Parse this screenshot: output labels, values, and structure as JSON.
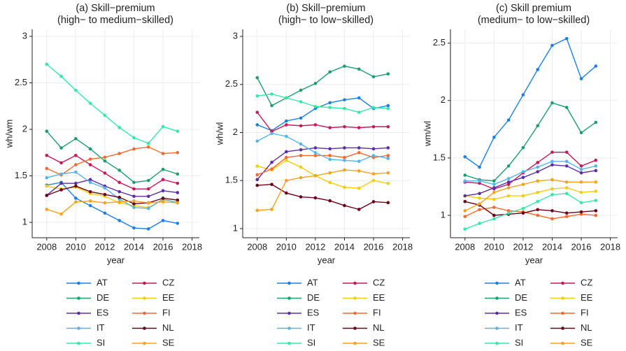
{
  "chart_data": [
    {
      "type": "line",
      "title": [
        "(a) Skill−premium",
        "(high− to medium−skilled)"
      ],
      "xlabel": "year",
      "ylabel": "wh/wm",
      "x": [
        2008,
        2009,
        2010,
        2011,
        2012,
        2013,
        2014,
        2015,
        2016,
        2017
      ],
      "xlim": [
        2007,
        2018.5
      ],
      "xticks": [
        2008,
        2010,
        2012,
        2014,
        2016,
        2018
      ],
      "ylim": [
        0.835,
        3.075
      ],
      "yticks": [
        1,
        1.5,
        2,
        2.5,
        3
      ],
      "grid": true,
      "series": [
        {
          "name": "AT",
          "color": "#1a7fe6",
          "values": [
            1.4,
            1.43,
            1.26,
            1.18,
            1.1,
            1.02,
            0.94,
            0.93,
            1.02,
            0.99
          ]
        },
        {
          "name": "CZ",
          "color": "#c8175a",
          "values": [
            1.72,
            1.64,
            1.72,
            1.62,
            1.53,
            1.43,
            1.36,
            1.36,
            1.46,
            1.42
          ]
        },
        {
          "name": "DE",
          "color": "#1a9e6e",
          "values": [
            1.98,
            1.8,
            1.9,
            1.79,
            1.66,
            1.56,
            1.43,
            1.45,
            1.57,
            1.52
          ]
        },
        {
          "name": "EE",
          "color": "#f2cd0f",
          "values": [
            1.39,
            1.36,
            1.38,
            1.31,
            1.28,
            1.21,
            1.18,
            1.16,
            1.24,
            1.22
          ]
        },
        {
          "name": "ES",
          "color": "#5b2ea6",
          "values": [
            1.29,
            1.42,
            1.42,
            1.46,
            1.39,
            1.33,
            1.28,
            1.28,
            1.34,
            1.32
          ]
        },
        {
          "name": "FI",
          "color": "#f26b2e",
          "values": [
            1.58,
            1.51,
            1.62,
            1.68,
            1.7,
            1.74,
            1.79,
            1.81,
            1.74,
            1.75
          ]
        },
        {
          "name": "IT",
          "color": "#56b4e9",
          "values": [
            1.48,
            1.52,
            1.54,
            1.43,
            1.37,
            1.25,
            1.16,
            1.15,
            1.25,
            1.21
          ]
        },
        {
          "name": "NL",
          "color": "#6b0018",
          "values": [
            1.29,
            1.35,
            1.39,
            1.33,
            1.3,
            1.27,
            1.2,
            1.21,
            1.26,
            1.24
          ]
        },
        {
          "name": "SI",
          "color": "#33e8a8",
          "values": [
            2.7,
            2.57,
            2.42,
            2.28,
            2.15,
            2.02,
            1.91,
            1.85,
            2.03,
            1.98
          ]
        },
        {
          "name": "SE",
          "color": "#f5a21c",
          "values": [
            1.14,
            1.09,
            1.22,
            1.23,
            1.21,
            1.22,
            1.23,
            1.21,
            1.22,
            1.21
          ]
        }
      ]
    },
    {
      "type": "line",
      "title": [
        "(b) Skill−premium",
        "(high− to low−skilled)"
      ],
      "xlabel": "year",
      "ylabel": "wh/wl",
      "x": [
        2008,
        2009,
        2010,
        2011,
        2012,
        2013,
        2014,
        2015,
        2016,
        2017
      ],
      "xlim": [
        2007,
        2018.5
      ],
      "xticks": [
        2008,
        2010,
        2012,
        2014,
        2016,
        2018
      ],
      "ylim": [
        0.905,
        3.073
      ],
      "yticks": [
        1,
        1.5,
        2,
        2.5,
        3
      ],
      "grid": true,
      "series": [
        {
          "name": "AT",
          "color": "#1a7fe6",
          "values": [
            2.08,
            2.02,
            2.12,
            2.15,
            2.25,
            2.31,
            2.34,
            2.36,
            2.25,
            2.28
          ]
        },
        {
          "name": "CZ",
          "color": "#c8175a",
          "values": [
            2.21,
            2.01,
            2.08,
            2.07,
            2.08,
            2.05,
            2.06,
            2.05,
            2.06,
            2.06
          ]
        },
        {
          "name": "DE",
          "color": "#1a9e6e",
          "values": [
            2.57,
            2.28,
            2.36,
            2.44,
            2.51,
            2.63,
            2.69,
            2.66,
            2.58,
            2.61
          ]
        },
        {
          "name": "EE",
          "color": "#f2cd0f",
          "values": [
            1.65,
            1.61,
            1.71,
            1.64,
            1.55,
            1.48,
            1.43,
            1.42,
            1.5,
            1.47
          ]
        },
        {
          "name": "ES",
          "color": "#5b2ea6",
          "values": [
            1.51,
            1.69,
            1.8,
            1.82,
            1.84,
            1.83,
            1.84,
            1.84,
            1.83,
            1.84
          ]
        },
        {
          "name": "FI",
          "color": "#f26b2e",
          "values": [
            1.56,
            1.62,
            1.74,
            1.76,
            1.76,
            1.76,
            1.74,
            1.79,
            1.74,
            1.76
          ]
        },
        {
          "name": "IT",
          "color": "#56b4e9",
          "values": [
            1.91,
            1.99,
            1.96,
            1.88,
            1.79,
            1.72,
            1.71,
            1.7,
            1.76,
            1.73
          ]
        },
        {
          "name": "NL",
          "color": "#6b0018",
          "values": [
            1.45,
            1.46,
            1.37,
            1.33,
            1.32,
            1.29,
            1.24,
            1.2,
            1.28,
            1.27
          ]
        },
        {
          "name": "SI",
          "color": "#33e8a8",
          "values": [
            2.38,
            2.4,
            2.36,
            2.32,
            2.27,
            2.26,
            2.25,
            2.21,
            2.26,
            2.25
          ]
        },
        {
          "name": "SE",
          "color": "#f5a21c",
          "values": [
            1.19,
            1.2,
            1.5,
            1.53,
            1.55,
            1.58,
            1.61,
            1.6,
            1.57,
            1.58
          ]
        }
      ]
    },
    {
      "type": "line",
      "title": [
        "(c) Skill premium",
        "(medium− to low−skilled)"
      ],
      "xlabel": "year",
      "ylabel": "wm/wl",
      "x": [
        2008,
        2009,
        2010,
        2011,
        2012,
        2013,
        2014,
        2015,
        2016,
        2017
      ],
      "xlim": [
        2007,
        2018.5
      ],
      "xticks": [
        2008,
        2010,
        2012,
        2014,
        2016,
        2018
      ],
      "ylim": [
        0.805,
        2.62
      ],
      "yticks": [
        1,
        1.5,
        2,
        2.5
      ],
      "grid": true,
      "series": [
        {
          "name": "AT",
          "color": "#1a7fe6",
          "values": [
            1.51,
            1.42,
            1.68,
            1.83,
            2.05,
            2.27,
            2.48,
            2.54,
            2.19,
            2.3
          ]
        },
        {
          "name": "CZ",
          "color": "#c8175a",
          "values": [
            1.29,
            1.28,
            1.23,
            1.27,
            1.37,
            1.46,
            1.55,
            1.55,
            1.43,
            1.48
          ]
        },
        {
          "name": "DE",
          "color": "#1a9e6e",
          "values": [
            1.35,
            1.31,
            1.3,
            1.43,
            1.59,
            1.78,
            1.98,
            1.94,
            1.72,
            1.81
          ]
        },
        {
          "name": "EE",
          "color": "#f2cd0f",
          "values": [
            1.17,
            1.15,
            1.14,
            1.17,
            1.17,
            1.2,
            1.23,
            1.24,
            1.2,
            1.21
          ]
        },
        {
          "name": "ES",
          "color": "#5b2ea6",
          "values": [
            1.17,
            1.19,
            1.24,
            1.29,
            1.33,
            1.38,
            1.44,
            1.43,
            1.37,
            1.39
          ]
        },
        {
          "name": "FI",
          "color": "#f26b2e",
          "values": [
            0.99,
            1.05,
            1.07,
            1.04,
            1.03,
            1.0,
            0.97,
            0.99,
            1.01,
            1.0
          ]
        },
        {
          "name": "IT",
          "color": "#56b4e9",
          "values": [
            1.3,
            1.3,
            1.27,
            1.32,
            1.38,
            1.42,
            1.47,
            1.47,
            1.4,
            1.43
          ]
        },
        {
          "name": "NL",
          "color": "#6b0018",
          "values": [
            1.12,
            1.09,
            1.0,
            1.01,
            1.02,
            1.05,
            1.04,
            1.02,
            1.03,
            1.04
          ]
        },
        {
          "name": "SI",
          "color": "#33e8a8",
          "values": [
            0.88,
            0.93,
            0.97,
            1.02,
            1.06,
            1.12,
            1.18,
            1.19,
            1.11,
            1.13
          ]
        },
        {
          "name": "SE",
          "color": "#f5a21c",
          "values": [
            1.04,
            1.1,
            1.2,
            1.24,
            1.27,
            1.3,
            1.31,
            1.29,
            1.29,
            1.29
          ]
        }
      ]
    }
  ]
}
